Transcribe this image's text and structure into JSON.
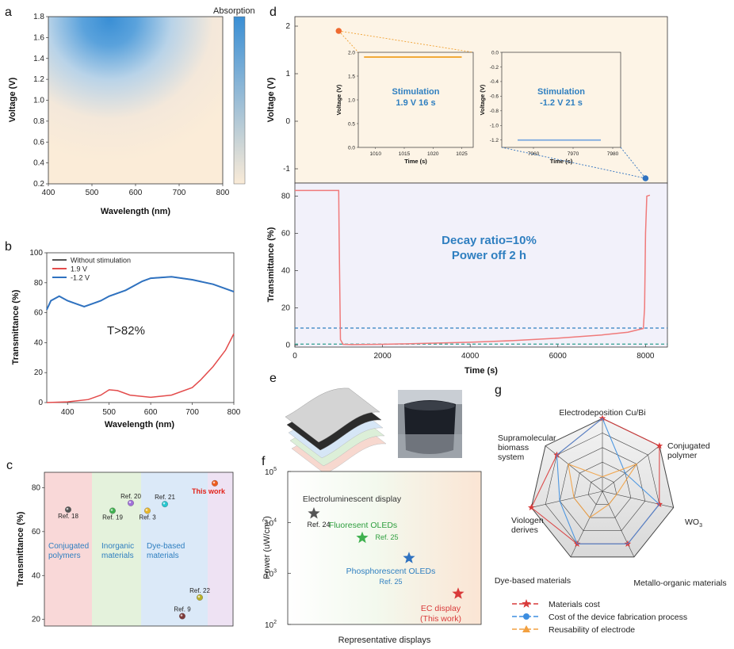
{
  "panel_letters": [
    "a",
    "b",
    "c",
    "d",
    "e",
    "f",
    "g"
  ],
  "chart_data": [
    {
      "id": "a",
      "type": "heatmap",
      "xlabel": "Wavelength (nm)",
      "ylabel": "Voltage (V)",
      "xlim": [
        400,
        800
      ],
      "ylim": [
        0.2,
        1.8
      ],
      "xticks": [
        400,
        500,
        600,
        700,
        800
      ],
      "yticks": [
        0.2,
        0.4,
        0.6,
        0.8,
        1.0,
        1.2,
        1.4,
        1.6,
        1.8
      ],
      "yticks_labels": [
        "0.2",
        "0.4",
        "0.6",
        "0.8",
        "1.0",
        "1.2",
        "1.4",
        "1.6",
        "1.8"
      ],
      "colorbar_label": "Absorption",
      "low_color": "#faebd7",
      "high_color": "#3a8fd5",
      "hotspot": {
        "wavelength": 560,
        "voltage": 1.7
      }
    },
    {
      "id": "b",
      "type": "line",
      "xlabel": "Wavelength (nm)",
      "ylabel": "Transmittance (%)",
      "xlim": [
        350,
        800
      ],
      "ylim": [
        0,
        100
      ],
      "xticks": [
        400,
        500,
        600,
        700,
        800
      ],
      "yticks": [
        0,
        20,
        40,
        60,
        80,
        100
      ],
      "annotation": "T>82%",
      "series": [
        {
          "name": "Without stimulation",
          "color": "#555555",
          "x": [
            350,
            360,
            380,
            400,
            440,
            480,
            500,
            540,
            580,
            600,
            650,
            700,
            750,
            800
          ],
          "y": [
            62,
            68,
            71,
            68,
            64,
            68,
            71,
            75,
            81,
            83,
            84,
            82,
            79,
            74
          ]
        },
        {
          "name": "1.9 V",
          "color": "#e34b4b",
          "x": [
            350,
            400,
            450,
            480,
            500,
            520,
            550,
            600,
            650,
            700,
            720,
            750,
            780,
            800
          ],
          "y": [
            0,
            0.5,
            2,
            5,
            8.5,
            8,
            5,
            3.5,
            5,
            10,
            15,
            24,
            35,
            46
          ]
        },
        {
          "name": "-1.2 V",
          "color": "#2f72c0",
          "x": [
            350,
            360,
            380,
            400,
            440,
            480,
            500,
            540,
            580,
            600,
            650,
            700,
            750,
            800
          ],
          "y": [
            62,
            68,
            71,
            68,
            64,
            68,
            71,
            75,
            81,
            83,
            84,
            82,
            79,
            74
          ]
        }
      ]
    },
    {
      "id": "c",
      "type": "scatter",
      "ylabel": "Transmittance (%)",
      "ylim": [
        17,
        87
      ],
      "yticks": [
        20,
        40,
        60,
        80
      ],
      "categories": [
        {
          "label": "Conjugated\npolymers",
          "lines": [
            "Conjugated",
            "polymers"
          ],
          "color": "#f9d8d8"
        },
        {
          "label": "Inorganic\nmaterials",
          "lines": [
            "Inorganic",
            "materials"
          ],
          "color": "#e4f2dc"
        },
        {
          "label": "Dye-based\nmaterials",
          "lines": [
            "Dye-based",
            "materials"
          ],
          "color": "#dbe9f8"
        },
        {
          "label": "",
          "lines": [],
          "color": "#eee2f3"
        }
      ],
      "points": [
        {
          "label": "Ref. 18",
          "category": 0,
          "y": 70,
          "color": "#555555",
          "label_pos": "below"
        },
        {
          "label": "Ref. 19",
          "category": 1,
          "y": 69.5,
          "color": "#3fb14f",
          "label_pos": "below"
        },
        {
          "label": "Ref. 20",
          "category": 2,
          "y": 73,
          "color": "#a070d8",
          "label_pos": "above"
        },
        {
          "label": "Ref. 3",
          "category": 2,
          "y": 69.5,
          "color": "#e7b62a",
          "label_pos": "below"
        },
        {
          "label": "Ref. 21",
          "category": 2,
          "y": 72.5,
          "color": "#25c6d0",
          "label_pos": "above"
        },
        {
          "label": "This work",
          "category": 3,
          "y": 82,
          "color": "#ef5a1c",
          "label_pos": "below",
          "highlight": true
        },
        {
          "label": "Ref. 22",
          "category": 3,
          "y": 30,
          "color": "#b9b02a",
          "label_pos": "above"
        },
        {
          "label": "Ref. 9",
          "category": 2,
          "y": 21.5,
          "color": "#7d3a3a",
          "label_pos": "above"
        }
      ]
    },
    {
      "id": "d-top",
      "type": "scatter",
      "ylabel": "Voltage (V)",
      "ylim": [
        -1.3,
        2.2
      ],
      "yticks": [
        -1,
        0,
        1,
        2
      ],
      "points": [
        {
          "x": 1000,
          "y": 1.9,
          "color": "#ef6a30"
        },
        {
          "x": 8000,
          "y": -1.2,
          "color": "#2f72c0"
        }
      ],
      "insets": [
        {
          "ylabel": "Voltage (V)",
          "xlabel": "Time (s)",
          "xlim": [
            1007,
            1027
          ],
          "ylim": [
            0,
            2.0
          ],
          "xticks": [
            1010,
            1015,
            1020,
            1025
          ],
          "yticks": [
            0,
            0.5,
            1.0,
            1.5,
            2.0
          ],
          "yticks_labels": [
            "0.0",
            "0.5",
            "1.0",
            "1.5",
            "2.0"
          ],
          "line_value": 1.9,
          "line_x": [
            1008,
            1025
          ],
          "line_color": "#f0a020",
          "text1": "Stimulation",
          "text2": "1.9 V 16 s"
        },
        {
          "ylabel": "Voltage (V)",
          "xlabel": "Time (s)",
          "xlim": [
            7952,
            7982
          ],
          "ylim": [
            -1.3,
            0
          ],
          "xticks": [
            7960,
            7970,
            7980
          ],
          "yticks": [
            0,
            -0.2,
            -0.4,
            -0.6,
            -0.8,
            -1.0,
            -1.2
          ],
          "yticks_labels": [
            "0.0",
            "-0.2",
            "-0.4",
            "-0.6",
            "-0.8",
            "-1.0",
            "-1.2"
          ],
          "line_value": -1.2,
          "line_x": [
            7956,
            7977
          ],
          "line_color": "#7aa8e0",
          "text1": "Stimulation",
          "text2": "-1.2 V 21 s"
        }
      ]
    },
    {
      "id": "d-bottom",
      "type": "line",
      "xlabel": "Time (s)",
      "ylabel": "Transmittance (%)",
      "xlim": [
        0,
        8500
      ],
      "ylim": [
        -1,
        87
      ],
      "xticks": [
        0,
        2000,
        4000,
        6000,
        8000
      ],
      "yticks": [
        0,
        20,
        40,
        60,
        80
      ],
      "annotation_line1": "Decay ratio=10%",
      "annotation_line2": "Power off 2 h",
      "hlines": [
        {
          "y": 9.2,
          "color": "#2f7fc0"
        },
        {
          "y": 0.6,
          "color": "#2f9f8f"
        }
      ],
      "series": [
        {
          "name": "Transmittance",
          "color": "#f07a7a",
          "x": [
            0,
            1000,
            1010,
            1040,
            1100,
            1300,
            2000,
            3000,
            4000,
            5000,
            6000,
            7000,
            7600,
            7950,
            7980,
            8000,
            8030,
            8100
          ],
          "y": [
            83,
            83,
            60,
            3,
            0.5,
            0.3,
            0.5,
            1,
            1.6,
            2.5,
            3.8,
            5.5,
            7,
            9,
            20,
            60,
            80,
            80.5
          ]
        }
      ]
    },
    {
      "id": "f",
      "type": "scatter",
      "xlabel": "Representative displays",
      "ylabel_main": "Power (uW/cm",
      "ylabel_sup": "2",
      "ylabel_close": ")",
      "yscale": "log",
      "ylim": [
        100,
        100000
      ],
      "yticks_base": [
        "10",
        "10",
        "10",
        "10"
      ],
      "yticks_exp": [
        "2",
        "3",
        "4",
        "5"
      ],
      "points": [
        {
          "name": "Electroluminescent display",
          "ref": "Ref. 24",
          "y": 15000,
          "color": "#555555"
        },
        {
          "name": "Fluoresent OLEDs",
          "ref": "Ref. 25",
          "y": 5000,
          "color": "#3fb14f"
        },
        {
          "name": "Phosphorescent OLEDs",
          "ref": "Ref. 25",
          "y": 2000,
          "color": "#2f72c0"
        },
        {
          "name": "EC display",
          "name2": "(This work)",
          "y": 400,
          "color": "#d93a3a"
        }
      ]
    },
    {
      "id": "g",
      "type": "radar",
      "axes": [
        "Electrodeposition Cu/Bi",
        "Conjugated polymer",
        "WO3",
        "Metallo-organic materials",
        "Dye-based materials",
        "Viologen derives",
        "Supramolecular biomass system"
      ],
      "axis_label_lines": [
        [
          "Electrodeposition Cu/Bi"
        ],
        [
          "Conjugated",
          "polymer"
        ],
        [
          "WO"
        ],
        [
          "Metallo-organic materials"
        ],
        [
          "Dye-based materials"
        ],
        [
          "Viologen",
          "derives"
        ],
        [
          "Supramolecular",
          "biomass",
          "system"
        ]
      ],
      "wo3_subscript": "3",
      "levels": 5,
      "max": 5,
      "series": [
        {
          "name": "Materials cost",
          "color": "#d93a3a",
          "marker": "star",
          "values": [
            5,
            5,
            4,
            4,
            4,
            5,
            4
          ]
        },
        {
          "name": "Cost of the device fabrication process",
          "color": "#3d8ee0",
          "marker": "circle",
          "values": [
            5,
            2,
            4,
            4,
            4,
            3,
            4
          ]
        },
        {
          "name": "Reusability of electrode",
          "color": "#f2a040",
          "marker": "triangle",
          "values": [
            1,
            3,
            1,
            1,
            2,
            2,
            3
          ]
        }
      ]
    }
  ]
}
